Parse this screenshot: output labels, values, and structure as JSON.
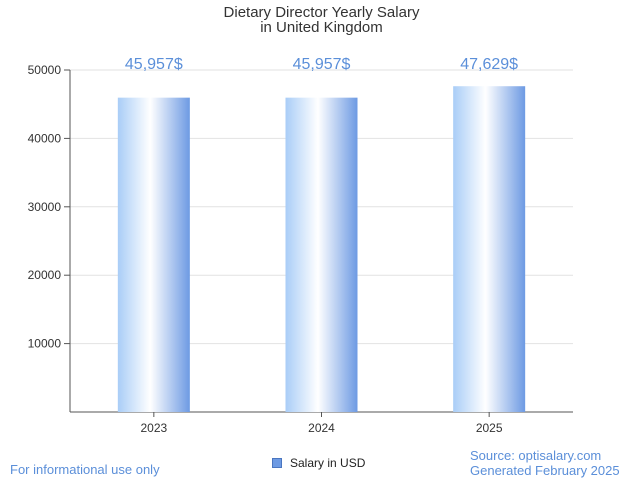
{
  "chart_data": {
    "type": "bar",
    "title": "Dietary Director Yearly Salary",
    "subtitle": "in United Kingdom",
    "categories": [
      "2023",
      "2024",
      "2025"
    ],
    "series": [
      {
        "name": "Salary in USD",
        "values": [
          45957,
          45957,
          47629
        ],
        "data_labels": [
          "45,957$",
          "45,957$",
          "47,629$"
        ]
      }
    ],
    "ylim": [
      0,
      50000
    ],
    "yticks": [
      "10000",
      "20000",
      "30000",
      "40000",
      "50000"
    ],
    "ytick_values": [
      10000,
      20000,
      30000,
      40000,
      50000
    ],
    "grid": true,
    "legend_placement": "bottom"
  },
  "footer": {
    "info_text": "For informational use only",
    "source_text": "Source: optisalary.com",
    "generated_text": "Generated February 2025"
  },
  "colors": {
    "bar_edge": "#6d9ae3",
    "bar_light": "#ffffff",
    "bar_mid": "#a9cdf7",
    "data_label": "#5b8fd9",
    "grid": "#e2e2e2",
    "axis": "#555555"
  }
}
